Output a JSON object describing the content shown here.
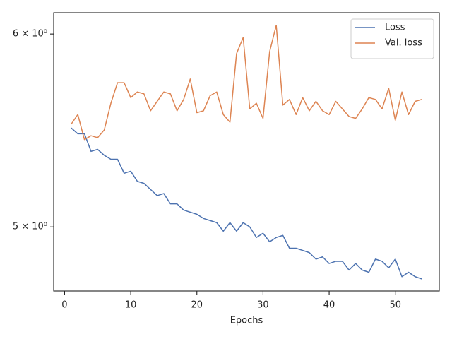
{
  "chart_data": {
    "type": "line",
    "xlabel": "Epochs",
    "yscale": "log",
    "grid": false,
    "legend": "upper right",
    "x": [
      1,
      2,
      3,
      4,
      5,
      6,
      7,
      8,
      9,
      10,
      11,
      12,
      13,
      14,
      15,
      16,
      17,
      18,
      19,
      20,
      21,
      22,
      23,
      24,
      25,
      26,
      27,
      28,
      29,
      30,
      31,
      32,
      33,
      34,
      35,
      36,
      37,
      38,
      39,
      40,
      41,
      42,
      43,
      44,
      45,
      46,
      47,
      48,
      49,
      50,
      51,
      52,
      53,
      54
    ],
    "series": [
      {
        "name": "Loss",
        "color": "#4c72b0",
        "values": [
          5.49,
          5.46,
          5.46,
          5.37,
          5.38,
          5.35,
          5.33,
          5.33,
          5.26,
          5.27,
          5.22,
          5.21,
          5.18,
          5.15,
          5.16,
          5.11,
          5.11,
          5.08,
          5.07,
          5.06,
          5.04,
          5.03,
          5.02,
          4.98,
          5.02,
          4.98,
          5.02,
          5.0,
          4.95,
          4.97,
          4.93,
          4.95,
          4.96,
          4.9,
          4.9,
          4.89,
          4.88,
          4.85,
          4.86,
          4.83,
          4.84,
          4.84,
          4.8,
          4.83,
          4.8,
          4.79,
          4.85,
          4.84,
          4.81,
          4.85,
          4.77,
          4.79,
          4.77,
          4.76
        ]
      },
      {
        "name": "Val. loss",
        "color": "#dd8452",
        "values": [
          5.51,
          5.56,
          5.43,
          5.45,
          5.44,
          5.48,
          5.62,
          5.73,
          5.73,
          5.65,
          5.68,
          5.67,
          5.58,
          5.63,
          5.68,
          5.67,
          5.58,
          5.64,
          5.75,
          5.57,
          5.58,
          5.66,
          5.68,
          5.56,
          5.52,
          5.89,
          5.98,
          5.59,
          5.62,
          5.54,
          5.9,
          6.05,
          5.61,
          5.64,
          5.56,
          5.65,
          5.58,
          5.63,
          5.58,
          5.56,
          5.63,
          5.59,
          5.55,
          5.54,
          5.59,
          5.65,
          5.64,
          5.59,
          5.7,
          5.53,
          5.68,
          5.56,
          5.63,
          5.64
        ]
      }
    ],
    "xlim": [
      -1.65,
      56.65
    ],
    "xticks": [
      0,
      10,
      20,
      30,
      40,
      50
    ],
    "ylim": [
      4.706,
      6.122
    ],
    "yticks": [
      {
        "value": 5,
        "label": "5 × 10⁰"
      },
      {
        "value": 6,
        "label": "6 × 10⁰"
      }
    ]
  }
}
